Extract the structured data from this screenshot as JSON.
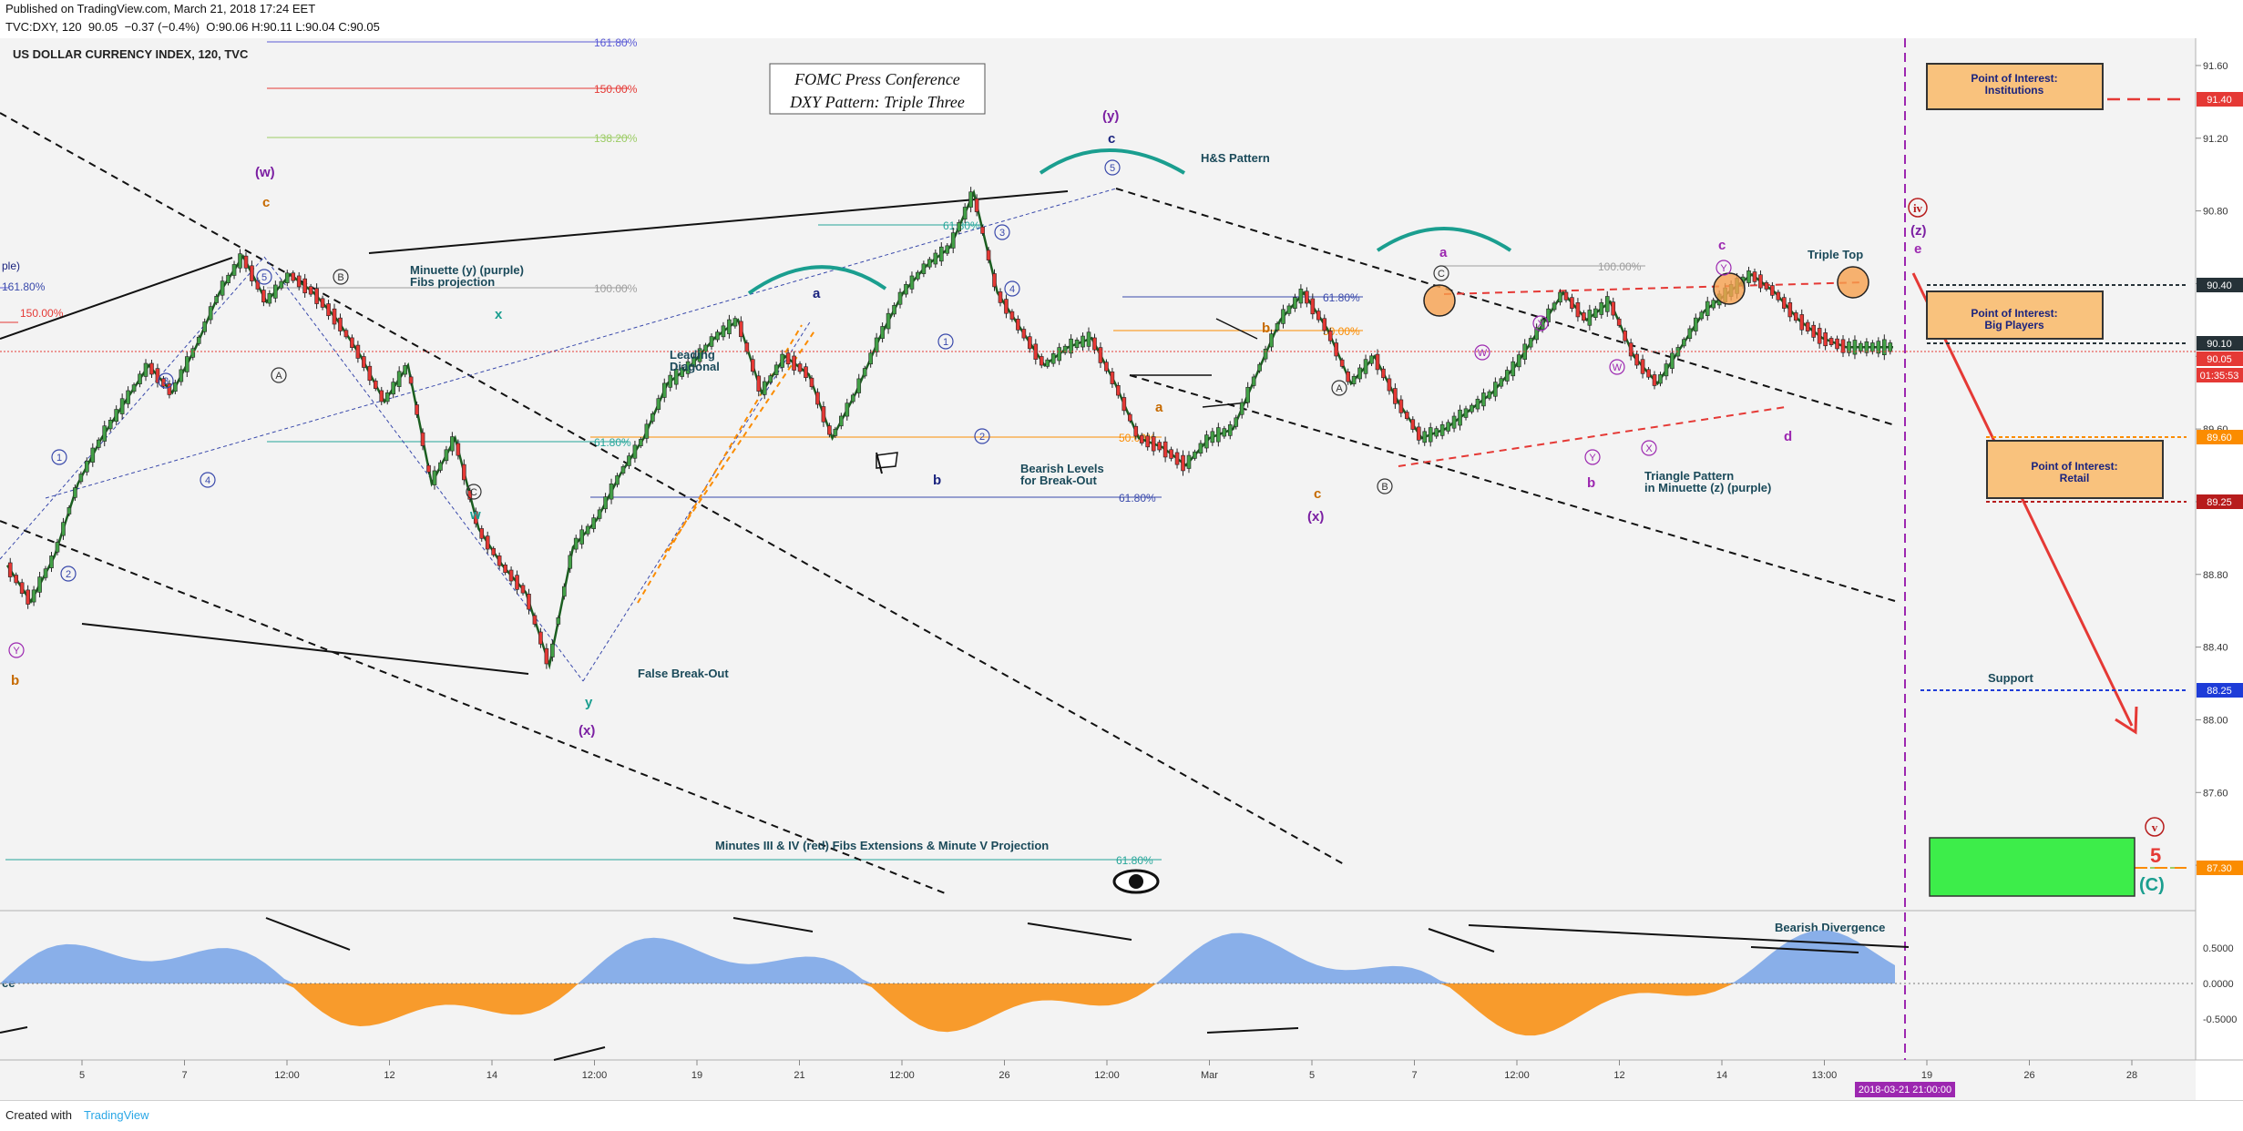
{
  "header": {
    "published": "Published on TradingView.com, March 21, 2018 17:24 EET",
    "symbol": "TVC:DXY, 120",
    "last": "90.05",
    "change": "−0.37 (−0.4%)",
    "ohlc": "O:90.06 H:90.11 L:90.04 C:90.05"
  },
  "footer": {
    "created_with": "Created with",
    "brand": "TradingView"
  },
  "chart_data": {
    "type": "line",
    "title": "US DOLLAR CURRENCY INDEX, 120, TVC",
    "ylim": [
      86.95,
      91.75
    ],
    "y_ticks": [
      "91.60",
      "91.20",
      "90.80",
      "90.40",
      "90.00",
      "89.60",
      "89.20",
      "88.80",
      "88.40",
      "88.00",
      "87.60",
      "87.20"
    ],
    "x_ticks": [
      "5",
      "7",
      "12:00",
      "12",
      "14",
      "12:00",
      "19",
      "21",
      "12:00",
      "26",
      "12:00",
      "Mar",
      "5",
      "7",
      "12:00",
      "12",
      "14",
      "13:00",
      "19",
      "26",
      "28"
    ],
    "series": [
      {
        "name": "",
        "x": [
          0,
          4,
          8,
          12,
          16,
          20,
          24,
          28,
          32,
          36,
          40,
          44,
          48,
          52,
          56,
          60,
          64,
          68,
          72,
          76,
          80,
          84,
          88,
          92,
          96,
          100,
          104,
          108,
          112,
          116,
          120,
          124,
          128,
          132,
          136,
          140,
          144,
          148,
          152,
          156,
          160,
          164,
          168,
          172,
          176,
          180,
          184,
          188,
          192,
          196,
          200,
          204,
          208,
          212,
          216,
          220,
          224,
          228,
          232,
          236,
          240,
          244,
          248,
          252,
          256,
          260,
          264,
          268,
          272,
          276,
          280,
          284,
          288,
          292,
          296,
          300,
          304,
          308,
          312,
          316,
          320
        ],
        "values": [
          88.85,
          88.65,
          88.9,
          89.3,
          89.55,
          89.75,
          89.95,
          89.8,
          90.05,
          90.35,
          90.55,
          90.3,
          90.45,
          90.35,
          90.2,
          90.0,
          89.75,
          89.95,
          89.3,
          89.55,
          89.05,
          88.85,
          88.7,
          88.3,
          88.95,
          89.1,
          89.35,
          89.55,
          89.85,
          89.95,
          90.1,
          90.2,
          89.8,
          90.0,
          89.9,
          89.55,
          89.8,
          90.1,
          90.35,
          90.5,
          90.6,
          90.9,
          90.35,
          90.15,
          89.95,
          90.05,
          90.1,
          89.85,
          89.55,
          89.5,
          89.4,
          89.55,
          89.6,
          89.9,
          90.2,
          90.35,
          90.15,
          89.85,
          90.0,
          89.75,
          89.55,
          89.6,
          89.7,
          89.8,
          89.95,
          90.15,
          90.35,
          90.2,
          90.3,
          90.0,
          89.85,
          90.05,
          90.25,
          90.35,
          90.45,
          90.35,
          90.2,
          90.1,
          90.05,
          90.05,
          90.05
        ]
      }
    ],
    "price_labels": [
      {
        "value": "91.40",
        "color": "#e53935"
      },
      {
        "value": "90.40",
        "color": "#263238"
      },
      {
        "value": "90.10",
        "color": "#263238"
      },
      {
        "value": "90.05",
        "color": "#e53935"
      },
      {
        "value": "01:35:53",
        "color": "#e53935"
      },
      {
        "value": "89.60",
        "color": "#fb8c00"
      },
      {
        "value": "89.25",
        "color": "#b71c1c"
      },
      {
        "value": "88.25",
        "color": "#1e3cd8"
      },
      {
        "value": "87.30",
        "color": "#fb8c00"
      }
    ],
    "fib_levels": [
      {
        "label": "161.80%",
        "color": "#5b5bd6"
      },
      {
        "label": "150.00%",
        "color": "#e53935"
      },
      {
        "label": "138.20%",
        "color": "#9ccc65"
      },
      {
        "label": "100.00%",
        "color": "#9e9e9e"
      },
      {
        "label": "61.80%",
        "color": "#26a69a"
      },
      {
        "label": "50.00%",
        "color": "#fb8c00"
      },
      {
        "label": "61.80%",
        "color": "#3949ab"
      }
    ],
    "left_fib": [
      {
        "label": "ple)",
        "color": "#1a237e"
      },
      {
        "label": "161.80%",
        "color": "#3949ab"
      },
      {
        "label": "150.00%",
        "color": "#e53935"
      }
    ],
    "boxes": {
      "fomc": [
        "FOMC Press Conference",
        "DXY Pattern: Triple Three"
      ],
      "poi_inst": [
        "Point of Interest:",
        "Institutions"
      ],
      "poi_big": [
        "Point of Interest:",
        "Big Players"
      ],
      "poi_retail": [
        "Point of Interest:",
        "Retail"
      ]
    },
    "annotations": {
      "minuette": [
        "Minuette (y) (purple)",
        "Fibs projection"
      ],
      "leading": [
        "Leading",
        "Diagonal"
      ],
      "bearish_levels": [
        "Bearish Levels",
        "for Break-Out"
      ],
      "false_breakout": "False Break-Out",
      "hs": "H&S Pattern",
      "triangle": [
        "Triangle Pattern",
        "in Minuette (z) (purple)"
      ],
      "triple_top": "Triple Top",
      "support": "Support",
      "minutes": "Minutes III & IV (red) Fibs Extensions & Minute V Projection",
      "divergence": "Bearish Divergence",
      "right_fib_a": "61.80%",
      "right_fib_b": "50.00%",
      "right_fib_c": "100.00%",
      "bottom_fib": "61.80%",
      "mid_fib": "61.80%",
      "mid_fib_b": "50.00%",
      "hs_fib": "61.80%",
      "ce": "ce",
      "date_label": "2018-03-21 21:00:00"
    },
    "wave_labels": {
      "w": "(w)",
      "x": "(x)",
      "y": "(y)",
      "x2": "(x)",
      "z": "(z)",
      "iv": "iv",
      "v": "v",
      "five": "5",
      "C": "(C)",
      "c1": "c",
      "c2": "c",
      "c3": "c",
      "c4": "c",
      "b1": "b",
      "b2": "b",
      "b3": "b",
      "a1": "a",
      "a2": "a",
      "a3": "a",
      "d": "d",
      "e": "e",
      "wx": "x",
      "ww": "w",
      "wy": "y",
      "Y": "Y",
      "n1": "1",
      "n2": "2",
      "n3": "3",
      "n4": "4",
      "n5": "5",
      "A": "A",
      "B": "B",
      "Cc": "C",
      "W": "W",
      "X": "X"
    },
    "osc_ticks": [
      "0.5000",
      "0.0000",
      "-0.5000"
    ]
  }
}
